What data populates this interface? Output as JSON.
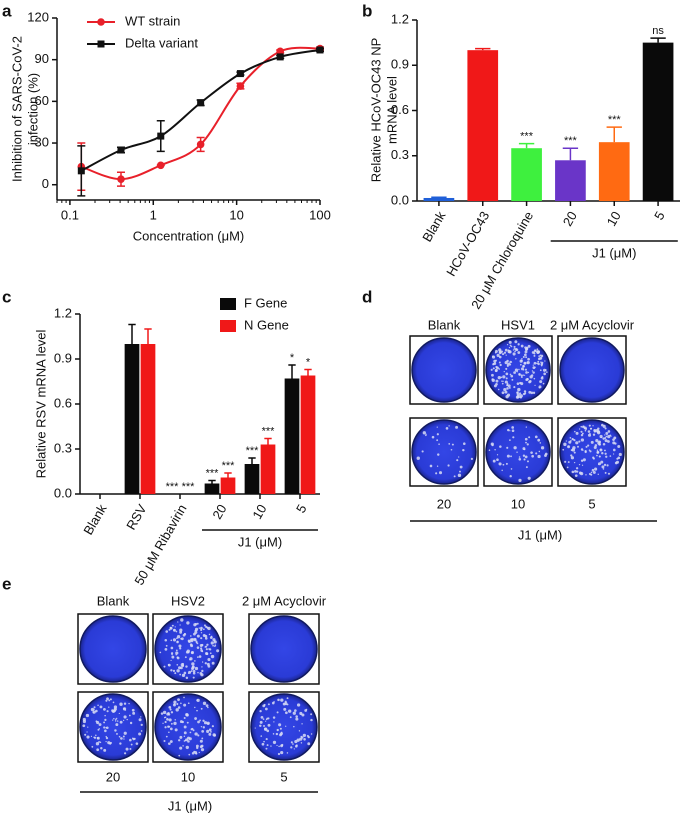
{
  "chart_data": [
    {
      "type": "line",
      "label": "a",
      "xlabel": "Concentration (μM)",
      "ylabel": [
        "Inhibition of SARS-CoV-2",
        "infection (%)"
      ],
      "xscale": "log",
      "xlim": [
        0.07,
        100
      ],
      "xticks": [
        0.1,
        1,
        10,
        100
      ],
      "ylim": [
        -11,
        120
      ],
      "yticks": [
        0,
        30,
        60,
        90,
        120
      ],
      "legend": "upper left",
      "x": [
        0.137,
        0.41,
        1.23,
        3.7,
        11.1,
        33.3,
        100
      ],
      "series": [
        {
          "name": "WT strain",
          "color": "#e8202a",
          "marker": "circle",
          "values": [
            13,
            4,
            14,
            29,
            71,
            96,
            98
          ],
          "errors": [
            17,
            5,
            0,
            5,
            2,
            1,
            1
          ]
        },
        {
          "name": "Delta variant",
          "color": "#111111",
          "marker": "square",
          "values": [
            10,
            25,
            35,
            59,
            80,
            92,
            97
          ],
          "errors": [
            18,
            2,
            11,
            2,
            1,
            1,
            1
          ]
        }
      ]
    },
    {
      "type": "bar",
      "label": "b",
      "ylabel": [
        "Relative HCoV-OC43 NP",
        "mRNA level"
      ],
      "categories": [
        "Blank",
        "HCoV-OC43",
        "20 μM Chloroquine",
        "20",
        "10",
        "5"
      ],
      "group_label": "J1 (μM)",
      "values": [
        0.02,
        1.0,
        0.35,
        0.27,
        0.39,
        1.05
      ],
      "errors": [
        0.005,
        0.01,
        0.03,
        0.08,
        0.1,
        0.03
      ],
      "annotations": [
        null,
        null,
        "***",
        "***",
        "***",
        "ns"
      ],
      "colors": [
        "#1f5fd8",
        "#f01818",
        "#3ef03e",
        "#6a35c8",
        "#ff6a12",
        "#0a0a0a"
      ],
      "ylim": [
        0,
        1.2
      ],
      "yticks": [
        {
          "value": 0,
          "label": "0.0"
        },
        0.3,
        0.6,
        0.9,
        1.2
      ]
    },
    {
      "type": "bar",
      "label": "c",
      "ylabel": [
        "Relative RSV mRNA level"
      ],
      "categories": [
        "Blank",
        "RSV",
        "50 μM Ribavirin",
        "20",
        "10",
        "5"
      ],
      "group_label": "J1 (μM)",
      "legend": "upper right",
      "series": [
        {
          "name": "F Gene",
          "color": "#0a0a0a",
          "values": [
            0,
            1.0,
            0,
            0.07,
            0.2,
            0.77
          ],
          "errors": [
            0,
            0.13,
            0,
            0.02,
            0.04,
            0.09
          ],
          "annotations": [
            null,
            null,
            "***",
            "***",
            "***",
            "*"
          ]
        },
        {
          "name": "N Gene",
          "color": "#f01818",
          "values": [
            0,
            1.0,
            0,
            0.11,
            0.33,
            0.79
          ],
          "errors": [
            0,
            0.1,
            0,
            0.03,
            0.04,
            0.04
          ],
          "annotations": [
            null,
            null,
            "***",
            "***",
            "***",
            "*"
          ]
        }
      ],
      "ylim": [
        0,
        1.2
      ],
      "yticks": [
        {
          "value": 0,
          "label": "0.0"
        },
        0.3,
        0.6,
        0.9,
        1.2
      ]
    }
  ],
  "plaque_panels": [
    {
      "label": "d",
      "columns": [
        "Blank",
        "HSV1",
        "2 μM Acyclovir"
      ],
      "doses": [
        20,
        10,
        5
      ],
      "dose_label": "J1 (μM)"
    },
    {
      "label": "e",
      "columns": [
        "Blank",
        "HSV2",
        "2 μM Acyclovir"
      ],
      "doses": [
        20,
        10,
        5
      ],
      "dose_label": "J1 (μM)"
    }
  ]
}
